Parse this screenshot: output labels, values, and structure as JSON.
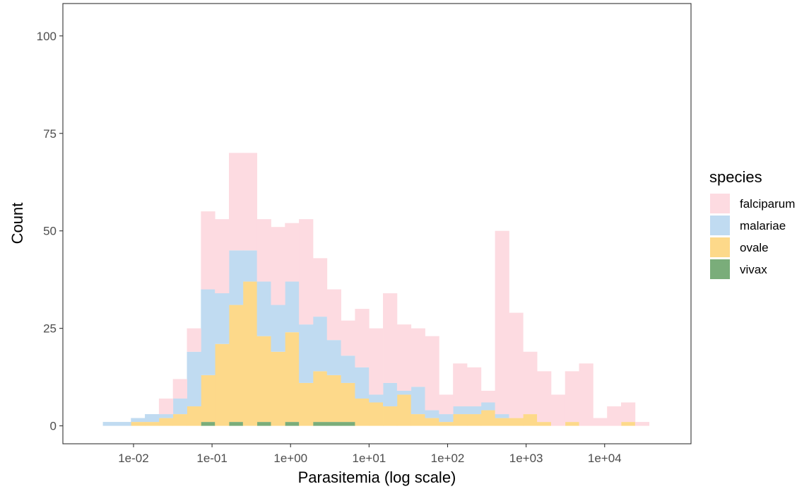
{
  "chart_data": {
    "type": "histogram",
    "xlabel": "Parasitemia (log scale)",
    "ylabel": "Count",
    "x_scale": "log10",
    "x_tick_values": [
      0.01,
      0.1,
      1,
      10,
      100,
      1000,
      10000
    ],
    "x_tick_labels": [
      "1e-02",
      "1e-01",
      "1e+00",
      "1e+01",
      "1e+02",
      "1e+03",
      "1e+04"
    ],
    "y_ticks": [
      0,
      25,
      50,
      75,
      100
    ],
    "ylim": [
      -4.6,
      108.3
    ],
    "xlim": [
      0.00126,
      125900
    ],
    "bin_edges": [
      0.00407,
      0.00614,
      0.00926,
      0.01396,
      0.02105,
      0.03174,
      0.04786,
      0.07217,
      0.1088,
      0.1641,
      0.2474,
      0.3731,
      0.5626,
      0.8483,
      1.279,
      1.929,
      2.908,
      4.385,
      6.612,
      9.97,
      15.03,
      22.67,
      34.18,
      51.54,
      77.72,
      117.2,
      176.7,
      266.4,
      401.7,
      605.8,
      913.4,
      1377,
      2077,
      3132,
      4722,
      7120,
      10736,
      16189,
      24411,
      36809
    ],
    "stacking": "stacked",
    "grid": false,
    "legend": {
      "title": "species",
      "position": "right",
      "entries": [
        "falciparum",
        "malariae",
        "ovale",
        "vivax"
      ]
    },
    "colors": {
      "falciparum": "#fddbe1",
      "malariae": "#c0dbf1",
      "ovale": "#fdd98a",
      "vivax": "#7aad7a"
    },
    "series": [
      {
        "name": "vivax",
        "values": [
          0,
          0,
          0,
          0,
          0,
          0,
          0,
          1,
          0,
          1,
          0,
          1,
          0,
          1,
          0,
          1,
          1,
          1,
          0,
          0,
          0,
          0,
          0,
          0,
          0,
          0,
          0,
          0,
          0,
          0,
          0,
          0,
          0,
          0,
          0,
          0,
          0,
          0,
          0
        ]
      },
      {
        "name": "ovale",
        "values": [
          0,
          0,
          1,
          1,
          2,
          3,
          5,
          12,
          21,
          30,
          37,
          22,
          19,
          23,
          11,
          13,
          12,
          10,
          7,
          6,
          5,
          8,
          3,
          2,
          1,
          3,
          3,
          4,
          2,
          2,
          3,
          1,
          0,
          1,
          0,
          0,
          0,
          1,
          0
        ]
      },
      {
        "name": "malariae",
        "values": [
          1,
          1,
          1,
          2,
          1,
          4,
          14,
          22,
          13,
          14,
          8,
          14,
          12,
          13,
          15,
          14,
          9,
          7,
          8,
          2,
          6,
          1,
          7,
          2,
          2,
          2,
          2,
          2,
          1,
          0,
          0,
          0,
          0,
          0,
          0,
          0,
          0,
          0,
          0
        ]
      },
      {
        "name": "falciparum",
        "values": [
          0,
          0,
          0,
          0,
          4,
          5,
          6,
          20,
          19,
          25,
          25,
          16,
          20,
          15,
          27,
          15,
          13,
          9,
          15,
          17,
          23,
          17,
          15,
          19,
          5,
          11,
          10,
          3,
          47,
          27,
          16,
          13,
          8,
          13,
          16,
          2,
          5,
          5,
          1
        ]
      }
    ]
  }
}
